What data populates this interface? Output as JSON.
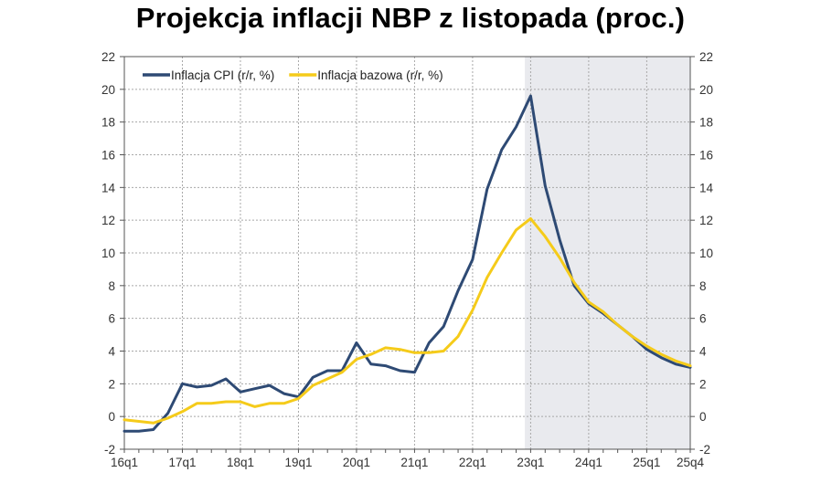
{
  "chart_data": {
    "type": "line",
    "title": "Projekcja inflacji NBP z listopada (proc.)",
    "xlabel": "",
    "ylabel": "",
    "ylim": [
      -2,
      22
    ],
    "yticks": [
      -2,
      0,
      2,
      4,
      6,
      8,
      10,
      12,
      14,
      16,
      18,
      20,
      22
    ],
    "x_tick_labels": [
      "16q1",
      "17q1",
      "18q1",
      "19q1",
      "20q1",
      "21q1",
      "22q1",
      "23q1",
      "24q1",
      "25q1",
      "25q4"
    ],
    "x_tick_positions": [
      0,
      4,
      8,
      12,
      16,
      20,
      24,
      28,
      32,
      36,
      39
    ],
    "x_count": 40,
    "projection_shade_start": 27.6,
    "grid": true,
    "legend_position": "top-left",
    "series": [
      {
        "name": "Inflacja CPI (r/r, %)",
        "color": "#2e4a74",
        "values": [
          -0.9,
          -0.9,
          -0.8,
          0.2,
          2.0,
          1.8,
          1.9,
          2.3,
          1.5,
          1.7,
          1.9,
          1.4,
          1.2,
          2.4,
          2.8,
          2.8,
          4.5,
          3.2,
          3.1,
          2.8,
          2.7,
          4.5,
          5.5,
          7.7,
          9.6,
          13.9,
          16.3,
          17.7,
          19.6,
          14.1,
          10.8,
          8.0,
          6.9,
          6.3,
          5.6,
          4.9,
          4.1,
          3.6,
          3.2,
          3.0
        ]
      },
      {
        "name": "Inflacja bazowa (r/r, %)",
        "color": "#f5cb1a",
        "values": [
          -0.2,
          -0.3,
          -0.4,
          -0.1,
          0.3,
          0.8,
          0.8,
          0.9,
          0.9,
          0.6,
          0.8,
          0.8,
          1.1,
          1.9,
          2.3,
          2.7,
          3.5,
          3.8,
          4.2,
          4.1,
          3.9,
          3.9,
          4.0,
          4.9,
          6.5,
          8.5,
          10.0,
          11.4,
          12.1,
          11.0,
          9.7,
          8.2,
          7.0,
          6.4,
          5.6,
          4.9,
          4.3,
          3.8,
          3.4,
          3.1
        ]
      }
    ]
  }
}
